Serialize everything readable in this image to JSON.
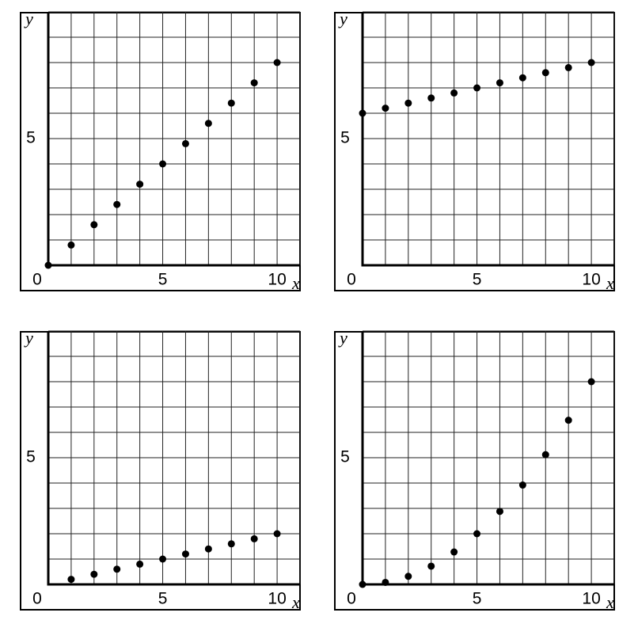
{
  "chart_data": [
    {
      "type": "scatter",
      "xlabel": "x",
      "ylabel": "y",
      "color": "#000000",
      "x": [
        0,
        1,
        2,
        3,
        4,
        5,
        6,
        7,
        8,
        9,
        10
      ],
      "values": [
        0,
        0.8,
        1.6,
        2.4,
        3.2,
        4.0,
        4.8,
        5.6,
        6.4,
        7.2,
        8.0
      ],
      "xlim": [
        0,
        11
      ],
      "ylim": [
        0,
        10
      ],
      "xticks": [
        0,
        5,
        10
      ],
      "yticks": [
        5
      ],
      "xgrid": [
        1,
        2,
        3,
        4,
        5,
        6,
        7,
        8,
        9,
        10,
        11
      ],
      "ygrid": [
        1,
        2,
        3,
        4,
        5,
        6,
        7,
        8,
        9,
        10
      ]
    },
    {
      "type": "scatter",
      "xlabel": "x",
      "ylabel": "y",
      "color": "#000000",
      "x": [
        0,
        1,
        2,
        3,
        4,
        5,
        6,
        7,
        8,
        9,
        10
      ],
      "values": [
        6.0,
        6.2,
        6.4,
        6.6,
        6.8,
        7.0,
        7.2,
        7.4,
        7.6,
        7.8,
        8.0
      ],
      "xlim": [
        0,
        11
      ],
      "ylim": [
        0,
        10
      ],
      "xticks": [
        0,
        5,
        10
      ],
      "yticks": [
        5
      ],
      "xgrid": [
        1,
        2,
        3,
        4,
        5,
        6,
        7,
        8,
        9,
        10,
        11
      ],
      "ygrid": [
        1,
        2,
        3,
        4,
        5,
        6,
        7,
        8,
        9,
        10
      ]
    },
    {
      "type": "scatter",
      "xlabel": "x",
      "ylabel": "y",
      "color": "#000000",
      "x": [
        1,
        2,
        3,
        4,
        5,
        6,
        7,
        8,
        9,
        10
      ],
      "values": [
        0.2,
        0.4,
        0.6,
        0.8,
        1.0,
        1.2,
        1.4,
        1.6,
        1.8,
        2.0
      ],
      "xlim": [
        0,
        11
      ],
      "ylim": [
        0,
        10
      ],
      "xticks": [
        0,
        5,
        10
      ],
      "yticks": [
        5
      ],
      "xgrid": [
        1,
        2,
        3,
        4,
        5,
        6,
        7,
        8,
        9,
        10,
        11
      ],
      "ygrid": [
        1,
        2,
        3,
        4,
        5,
        6,
        7,
        8,
        9,
        10
      ]
    },
    {
      "type": "scatter",
      "xlabel": "x",
      "ylabel": "y",
      "color": "#000000",
      "x": [
        0,
        1,
        2,
        3,
        4,
        5,
        6,
        7,
        8,
        9,
        10
      ],
      "values": [
        0,
        0.08,
        0.32,
        0.72,
        1.28,
        2.0,
        2.88,
        3.92,
        5.12,
        6.48,
        8.0
      ],
      "xlim": [
        0,
        11
      ],
      "ylim": [
        0,
        10
      ],
      "xticks": [
        0,
        5,
        10
      ],
      "yticks": [
        5
      ],
      "xgrid": [
        1,
        2,
        3,
        4,
        5,
        6,
        7,
        8,
        9,
        10,
        11
      ],
      "ygrid": [
        1,
        2,
        3,
        4,
        5,
        6,
        7,
        8,
        9,
        10
      ]
    }
  ]
}
